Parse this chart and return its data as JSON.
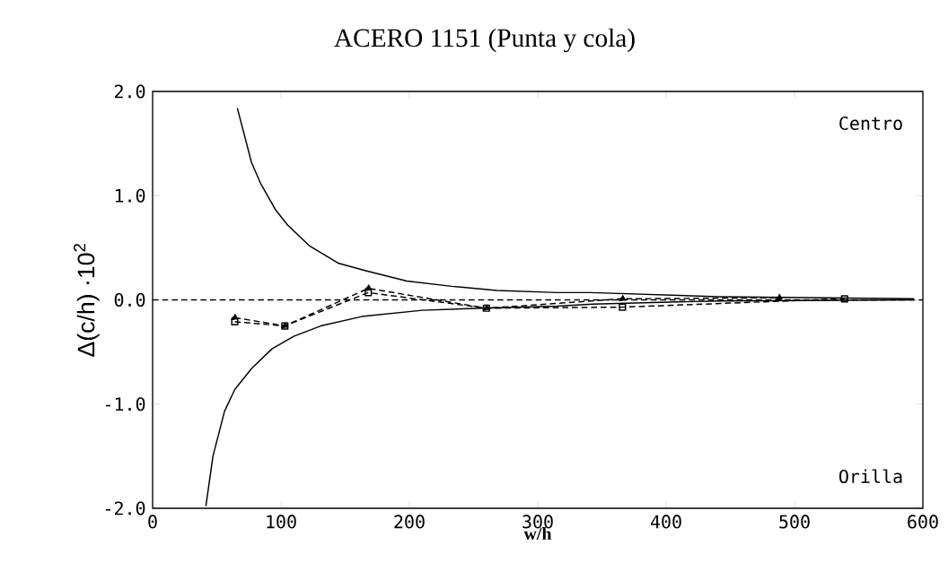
{
  "chart_data": {
    "type": "line",
    "title": "ACERO 1151 (Punta y cola)",
    "xlabel": "w/h",
    "ylabel": "Δ(c/h) ·10$^{2}$",
    "annotations": [
      "Centro",
      "Orilla"
    ],
    "xlim": [
      0,
      600
    ],
    "xticks": [
      0,
      100,
      200,
      300,
      400,
      500,
      600
    ],
    "ylim": [
      -2.0,
      2.0
    ],
    "yticks": [
      {
        "value": -2,
        "label": "-2.0"
      },
      {
        "value": -1,
        "label": "-1.0"
      },
      {
        "value": 0,
        "label": "0.0"
      },
      {
        "value": 1,
        "label": "1.0"
      },
      {
        "value": 2,
        "label": "2.0"
      }
    ],
    "ref_lines": [
      {
        "axis": "y",
        "value": 0,
        "line_style": "dashed",
        "color": "#000000"
      }
    ],
    "grid": false,
    "series": [
      {
        "color": "#000000",
        "line_style": "solid",
        "marker": "none",
        "x": [
          66,
          77,
          84,
          96,
          105,
          122,
          145,
          166,
          198,
          233,
          268,
          315,
          341,
          441,
          593
        ],
        "values": [
          1.84,
          1.32,
          1.12,
          0.86,
          0.72,
          0.52,
          0.35,
          0.28,
          0.18,
          0.13,
          0.09,
          0.07,
          0.07,
          0.03,
          0.01
        ]
      },
      {
        "color": "#000000",
        "line_style": "solid",
        "marker": "none",
        "x": [
          41.5,
          47,
          56,
          64,
          77,
          93,
          110,
          131,
          163,
          210,
          257,
          315,
          343,
          441,
          593
        ],
        "values": [
          -1.98,
          -1.5,
          -1.07,
          -0.86,
          -0.66,
          -0.47,
          -0.35,
          -0.25,
          -0.16,
          -0.1,
          -0.08,
          -0.06,
          -0.04,
          -0.01,
          0.0
        ]
      },
      {
        "color": "#000000",
        "line_style": "dashed",
        "marker": "triangle",
        "x": [
          64,
          103,
          168,
          260,
          366,
          488
        ],
        "values": [
          -0.17,
          -0.25,
          0.11,
          -0.08,
          0.01,
          0.02
        ]
      },
      {
        "color": "#000000",
        "line_style": "dashed",
        "marker": "square",
        "x": [
          64,
          103,
          168,
          260,
          366,
          539
        ],
        "values": [
          -0.21,
          -0.25,
          0.07,
          -0.08,
          -0.07,
          0.01
        ]
      }
    ]
  }
}
